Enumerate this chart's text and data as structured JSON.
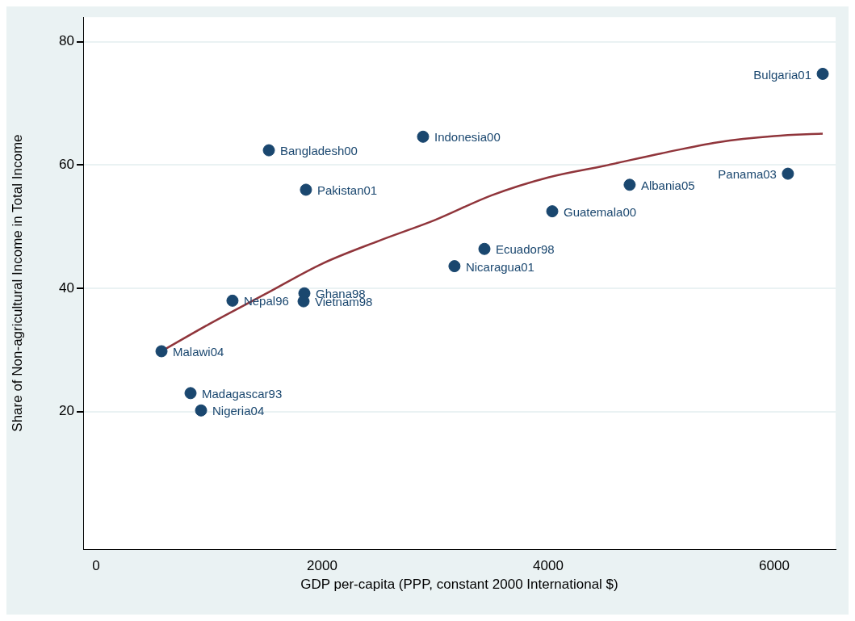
{
  "chart_data": {
    "type": "scatter",
    "xlabel": "GDP per-capita (PPP, constant 2000 International $)",
    "ylabel": "Share of Non-agricultural Income in Total Income",
    "xlim": [
      -114,
      6543
    ],
    "ylim": [
      -2.3,
      84
    ],
    "xticks": [
      0,
      2000,
      4000,
      6000
    ],
    "yticks": [
      20,
      40,
      60,
      80
    ],
    "grid": "y",
    "legend": false,
    "marker": "circle",
    "series": [
      {
        "type": "scatter",
        "color": "#1a476f",
        "x": [
          6429,
          2893,
          1529,
          1857,
          6121,
          4721,
          4036,
          3436,
          3171,
          1843,
          1836,
          1207,
          579,
          836,
          929
        ],
        "values": [
          74.8,
          64.6,
          62.4,
          56.0,
          58.6,
          56.8,
          52.5,
          46.4,
          43.6,
          39.2,
          37.9,
          38.0,
          29.8,
          23.0,
          20.2
        ]
      },
      {
        "type": "line",
        "color": "#90353b",
        "marker": "none",
        "x": [
          579,
          1000,
          1500,
          2000,
          2500,
          3000,
          3500,
          4000,
          4500,
          5000,
          5500,
          6000,
          6429
        ],
        "values": [
          29.8,
          34.2,
          39.1,
          44.0,
          47.7,
          51.1,
          55.1,
          58.0,
          59.9,
          61.9,
          63.7,
          64.7,
          65.1
        ]
      }
    ],
    "annotations": [
      {
        "text": "Bulgaria01",
        "x": 6429,
        "y": 74.8
      },
      {
        "text": "Indonesia00",
        "x": 2893,
        "y": 64.6
      },
      {
        "text": "Bangladesh00",
        "x": 1529,
        "y": 62.4
      },
      {
        "text": "Pakistan01",
        "x": 1857,
        "y": 56.0
      },
      {
        "text": "Panama03",
        "x": 6121,
        "y": 58.6
      },
      {
        "text": "Albania05",
        "x": 4721,
        "y": 56.8
      },
      {
        "text": "Guatemala00",
        "x": 4036,
        "y": 52.5
      },
      {
        "text": "Ecuador98",
        "x": 3436,
        "y": 46.4
      },
      {
        "text": "Nicaragua01",
        "x": 3171,
        "y": 43.6
      },
      {
        "text": "Ghana98",
        "x": 1843,
        "y": 39.2
      },
      {
        "text": "Vietnam98",
        "x": 1836,
        "y": 37.9
      },
      {
        "text": "Nepal96",
        "x": 1207,
        "y": 38.0
      },
      {
        "text": "Malawi04",
        "x": 579,
        "y": 29.8
      },
      {
        "text": "Madagascar93",
        "x": 836,
        "y": 23.0
      },
      {
        "text": "Nigeria04",
        "x": 929,
        "y": 20.2
      }
    ]
  }
}
